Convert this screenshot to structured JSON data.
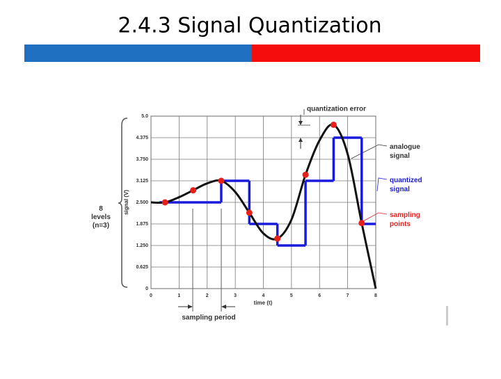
{
  "title": "2.4.3 Signal Quantization",
  "chart_data": {
    "type": "line",
    "xlabel": "time (t)",
    "ylabel": "signal (V)",
    "xlim": [
      0,
      8
    ],
    "xticks": [
      0,
      1,
      2,
      3,
      4,
      5,
      6,
      7,
      8
    ],
    "ylim": [
      0,
      5
    ],
    "yticks": [
      0,
      0.625,
      {
        "value": 1.25,
        "label": "1.250"
      },
      1.875,
      {
        "value": 2.5,
        "label": "2.500"
      },
      3.125,
      {
        "value": 3.75,
        "label": "3.750"
      },
      4.375,
      {
        "value": 5,
        "label": "5.0"
      }
    ],
    "grid": true,
    "series": [
      {
        "name": "analogue signal",
        "type": "line",
        "color": "#111111",
        "x": [
          0,
          0.5,
          1,
          1.5,
          2,
          2.5,
          3,
          3.5,
          4,
          4.5,
          5,
          5.5,
          6,
          6.5,
          7,
          7.5,
          8
        ],
        "values": [
          2.5,
          2.5,
          2.65,
          2.85,
          3.05,
          3.125,
          2.8,
          2.2,
          1.6,
          1.45,
          2.0,
          3.3,
          4.3,
          4.75,
          3.9,
          1.9,
          0
        ]
      },
      {
        "name": "quantized signal",
        "type": "step",
        "color": "#1a1adc",
        "x": [
          0.3,
          2.5,
          3.5,
          4.5,
          5.5,
          6.5,
          7.5
        ],
        "values": [
          2.5,
          3.125,
          1.875,
          1.25,
          3.125,
          4.375,
          1.875
        ]
      },
      {
        "name": "sampling points",
        "type": "scatter",
        "color": "#e8201c",
        "x": [
          0.5,
          1.5,
          2.5,
          3.5,
          4.5,
          5.5,
          6.5,
          7.5
        ],
        "values": [
          2.5,
          2.85,
          3.125,
          2.2,
          1.45,
          3.3,
          4.75,
          1.9
        ]
      }
    ],
    "annotations": {
      "levels": "8 levels (n=3)",
      "quantization_error": "quantization error",
      "sampling_period": "sampling period"
    }
  }
}
